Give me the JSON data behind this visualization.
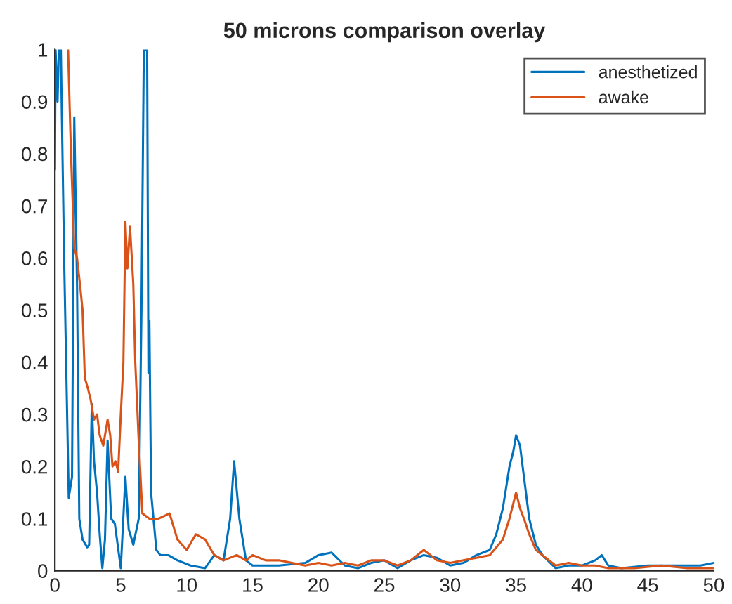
{
  "chart_data": {
    "type": "line",
    "title": "50 microns comparison overlay",
    "xlim": [
      0,
      50
    ],
    "ylim": [
      0,
      1
    ],
    "xticks": [
      0,
      5,
      10,
      15,
      20,
      25,
      30,
      35,
      40,
      45,
      50
    ],
    "yticks": [
      0,
      0.1,
      0.2,
      0.3,
      0.4,
      0.5,
      0.6,
      0.7,
      0.8,
      0.9,
      1
    ],
    "grid": false,
    "legend": "top right",
    "marker": "none",
    "line_style": "solid",
    "series": [
      {
        "name": "anesthetized",
        "color": "#0072bd",
        "x": [
          0,
          0.05,
          0.2,
          0.3,
          0.45,
          0.7,
          1.05,
          1.3,
          1.47,
          1.68,
          1.85,
          2.1,
          2.45,
          2.6,
          2.8,
          2.97,
          3.2,
          3.4,
          3.6,
          3.8,
          4.0,
          4.27,
          4.55,
          5.0,
          5.15,
          5.35,
          5.6,
          5.95,
          6.36,
          6.57,
          6.75,
          7.0,
          7.1,
          7.17,
          7.3,
          7.7,
          8.0,
          8.6,
          9.3,
          10.3,
          11.4,
          12.1,
          12.8,
          13.3,
          13.6,
          14,
          14.5,
          15,
          17,
          19,
          20,
          21,
          22,
          23,
          24,
          25,
          26,
          27,
          28,
          29,
          30,
          31,
          32,
          33,
          33.5,
          34,
          34.5,
          34.8,
          35,
          35.3,
          35.6,
          36,
          36.5,
          37,
          38,
          39,
          40,
          41,
          41.5,
          42,
          43,
          45,
          47,
          49,
          50
        ],
        "values": [
          0.77,
          1,
          0.9,
          1,
          1,
          0.6,
          0.14,
          0.18,
          0.87,
          0.55,
          0.1,
          0.06,
          0.045,
          0.05,
          0.32,
          0.21,
          0.15,
          0.07,
          0.005,
          0.06,
          0.25,
          0.1,
          0.09,
          0.005,
          0.08,
          0.18,
          0.08,
          0.05,
          0.1,
          0.5,
          1,
          1,
          0.38,
          0.48,
          0.15,
          0.04,
          0.03,
          0.03,
          0.02,
          0.01,
          0.005,
          0.03,
          0.02,
          0.1,
          0.21,
          0.1,
          0.02,
          0.01,
          0.01,
          0.015,
          0.03,
          0.035,
          0.01,
          0.005,
          0.015,
          0.02,
          0.005,
          0.02,
          0.03,
          0.025,
          0.01,
          0.015,
          0.03,
          0.04,
          0.07,
          0.12,
          0.2,
          0.23,
          0.26,
          0.24,
          0.18,
          0.1,
          0.05,
          0.03,
          0.005,
          0.01,
          0.01,
          0.02,
          0.03,
          0.01,
          0.005,
          0.01,
          0.01,
          0.01,
          0.015
        ]
      },
      {
        "name": "awake",
        "color": "#d95319",
        "x": [
          1,
          1.22,
          1.47,
          1.68,
          1.9,
          2.1,
          2.27,
          2.5,
          2.7,
          2.97,
          3.2,
          3.4,
          3.67,
          4.0,
          4.2,
          4.37,
          4.6,
          4.8,
          5.0,
          5.2,
          5.35,
          5.5,
          5.7,
          5.95,
          6.1,
          6.36,
          6.64,
          7.17,
          7.87,
          8.7,
          9.3,
          10,
          10.7,
          11.4,
          12.1,
          12.8,
          13.8,
          14.5,
          15,
          16,
          17,
          18,
          19,
          20,
          21,
          22,
          23,
          24,
          25,
          26,
          27,
          28,
          29,
          30,
          31,
          32,
          33,
          34,
          34.5,
          35,
          35.3,
          35.6,
          36,
          36.5,
          37,
          38,
          39,
          40,
          41,
          42,
          44,
          46,
          48,
          50
        ],
        "values": [
          1,
          0.8,
          0.62,
          0.6,
          0.55,
          0.5,
          0.37,
          0.35,
          0.33,
          0.29,
          0.3,
          0.26,
          0.24,
          0.29,
          0.26,
          0.2,
          0.21,
          0.19,
          0.3,
          0.4,
          0.67,
          0.58,
          0.66,
          0.55,
          0.4,
          0.25,
          0.11,
          0.1,
          0.1,
          0.11,
          0.06,
          0.04,
          0.07,
          0.06,
          0.03,
          0.02,
          0.03,
          0.02,
          0.03,
          0.02,
          0.02,
          0.015,
          0.01,
          0.015,
          0.01,
          0.015,
          0.01,
          0.02,
          0.02,
          0.01,
          0.02,
          0.04,
          0.02,
          0.015,
          0.02,
          0.025,
          0.03,
          0.06,
          0.1,
          0.15,
          0.12,
          0.1,
          0.07,
          0.04,
          0.03,
          0.01,
          0.015,
          0.01,
          0.01,
          0.005,
          0.005,
          0.01,
          0.005,
          0.005
        ]
      }
    ]
  }
}
